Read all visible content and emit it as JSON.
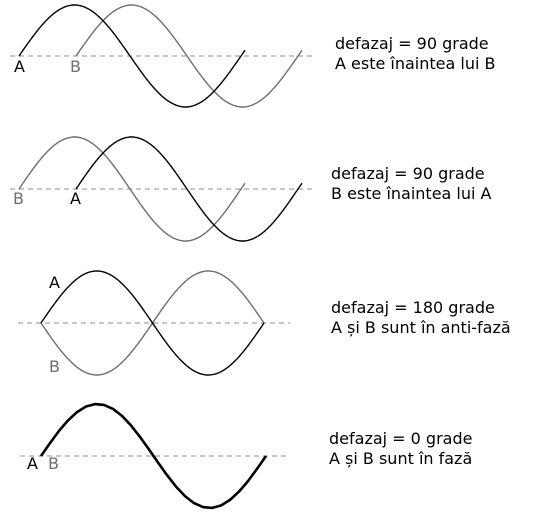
{
  "colors": {
    "background": "#ffffff",
    "wave_a": "#000000",
    "wave_b": "#6e6e6e",
    "axis": "#8c8c8c"
  },
  "panels": [
    {
      "caption_line1": "defazaj = 90 grade",
      "caption_line2": "A este înaintea lui B",
      "label_a": "A",
      "label_b": "B"
    },
    {
      "caption_line1": "defazaj = 90 grade",
      "caption_line2": "B este înaintea lui A",
      "label_a": "A",
      "label_b": "B"
    },
    {
      "caption_line1": "defazaj = 180 grade",
      "caption_line2": "A și B sunt în anti-fază",
      "label_a": "A",
      "label_b": "B"
    },
    {
      "caption_line1": "defazaj = 0 grade",
      "caption_line2": "A și B sunt în fază",
      "label_a": "A",
      "label_b": "B"
    }
  ]
}
